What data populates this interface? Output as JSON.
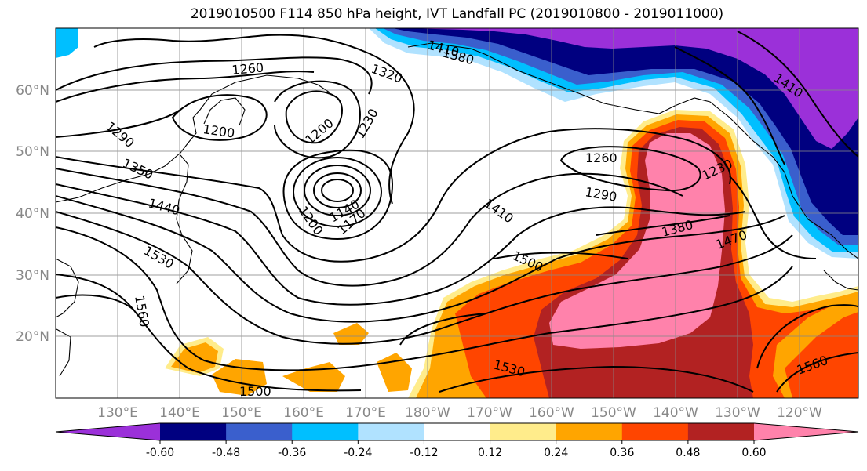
{
  "title": "2019010500 F114 850 hPa height, IVT Landfall PC (2019010800 - 2019011000)",
  "map": {
    "lon_labels": [
      "130°E",
      "140°E",
      "150°E",
      "160°E",
      "170°E",
      "180°W",
      "170°W",
      "160°W",
      "150°W",
      "140°W",
      "130°W",
      "120°W"
    ],
    "lat_labels": [
      "60°N",
      "50°N",
      "40°N",
      "30°N",
      "20°N"
    ],
    "contour_labels": [
      "1410",
      "1380",
      "1320",
      "1260",
      "1200",
      "1200",
      "1230",
      "1290",
      "1350",
      "1440",
      "1530",
      "1560",
      "1200",
      "1140",
      "1170",
      "1410",
      "1500",
      "1260",
      "1290",
      "1380",
      "1230",
      "1470",
      "1410",
      "1530",
      "1500",
      "1560"
    ]
  },
  "colorbar": {
    "colors": [
      "#9b30d9",
      "#000080",
      "#3a5fcd",
      "#00bfff",
      "#b0e2ff",
      "#ffffff",
      "#ffec8b",
      "#ffa500",
      "#ff4500",
      "#b22222",
      "#ff82ab"
    ],
    "tick_labels": [
      "-0.60",
      "-0.48",
      "-0.36",
      "-0.24",
      "-0.12",
      "0.12",
      "0.24",
      "0.36",
      "0.48",
      "0.60"
    ]
  }
}
